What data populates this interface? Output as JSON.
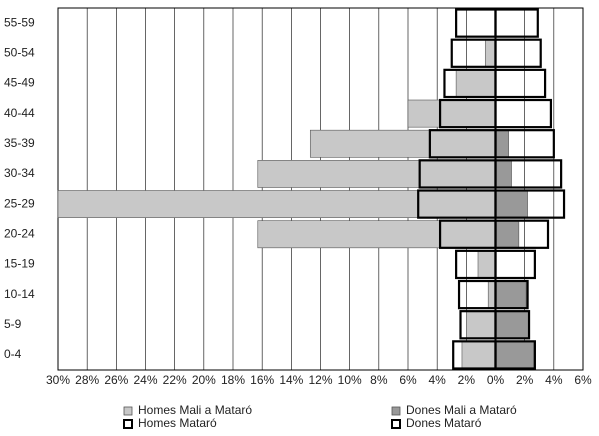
{
  "chart_data": {
    "type": "pyramid",
    "categories": [
      "0-4",
      "5-9",
      "10-14",
      "15-19",
      "20-24",
      "25-29",
      "30-34",
      "35-39",
      "40-44",
      "45-49",
      "50-54",
      "55-59"
    ],
    "series": [
      {
        "name": "Homes Mali a Mataró",
        "color": "#c8c8c8",
        "style": "filled",
        "values": [
          -2.3,
          -2.0,
          -0.5,
          -1.2,
          -16.3,
          -30,
          -16.3,
          -12.7,
          -6,
          -2.7,
          -0.7,
          0
        ]
      },
      {
        "name": "Dones Mali a Mataró",
        "color": "#999999",
        "style": "filled",
        "values": [
          2.6,
          2.3,
          2.1,
          0,
          1.6,
          2.2,
          1.1,
          0.9,
          0,
          0,
          0,
          0
        ]
      },
      {
        "name": "Homes Mataró",
        "color": "#000000",
        "style": "outline",
        "values": [
          -2.9,
          -2.4,
          -2.5,
          -2.7,
          -3.8,
          -5.3,
          -5.2,
          -4.5,
          -3.8,
          -3.5,
          -3.0,
          -2.7
        ]
      },
      {
        "name": "Dones Mataró",
        "color": "#000000",
        "style": "outline",
        "values": [
          2.7,
          2.3,
          2.2,
          2.7,
          3.6,
          4.7,
          4.5,
          4.0,
          3.8,
          3.4,
          3.1,
          2.9
        ]
      }
    ],
    "xlim": [
      -30,
      6
    ],
    "xticks": [
      {
        "value": -30,
        "label": "30%"
      },
      {
        "value": -28,
        "label": "28%"
      },
      {
        "value": -26,
        "label": "26%"
      },
      {
        "value": -24,
        "label": "24%"
      },
      {
        "value": -22,
        "label": "22%"
      },
      {
        "value": -20,
        "label": "20%"
      },
      {
        "value": -18,
        "label": "18%"
      },
      {
        "value": -16,
        "label": "16%"
      },
      {
        "value": -14,
        "label": "14%"
      },
      {
        "value": -12,
        "label": "12%"
      },
      {
        "value": -10,
        "label": "10%"
      },
      {
        "value": -8,
        "label": "8%"
      },
      {
        "value": -6,
        "label": "6%"
      },
      {
        "value": -4,
        "label": "4%"
      },
      {
        "value": -2,
        "label": "2%"
      },
      {
        "value": 0,
        "label": "0%"
      },
      {
        "value": 2,
        "label": "2%"
      },
      {
        "value": 4,
        "label": "4%"
      },
      {
        "value": 6,
        "label": "6%"
      }
    ],
    "grid": true
  }
}
